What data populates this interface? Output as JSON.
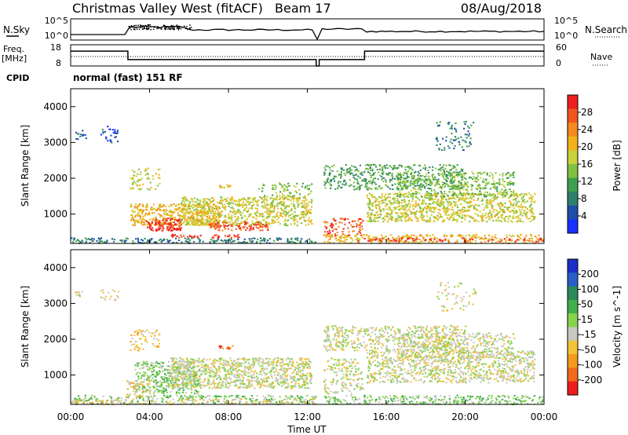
{
  "chart_data": {
    "type": "heatmap",
    "title": "Christmas Valley West (fitACF)",
    "beam_label": "Beam 17",
    "date": "08/Aug/2018",
    "xlabel": "Time UT",
    "x_ticks": [
      "00:00",
      "04:00",
      "08:00",
      "12:00",
      "16:00",
      "20:00",
      "00:00"
    ],
    "xlim_hours": [
      0,
      24
    ],
    "header": {
      "nsky_label": "N.Sky",
      "nsearch_label": "N.Search",
      "sky_ticks_left": [
        "10^5",
        "10^0"
      ],
      "sky_ticks_right": [
        "10^5",
        "10^0"
      ],
      "freq_label": "Freq.",
      "freq_unit": "[MHz]",
      "freq_ticks": [
        "18",
        "8"
      ],
      "nave_label": "Nave",
      "nave_ticks": [
        "60",
        "0"
      ],
      "cpid_label": "CPID",
      "cpid_value": "normal (fast) 151 RF",
      "freq_steps": [
        {
          "t0": 0.0,
          "t1": 2.9,
          "freq_mhz": 15
        },
        {
          "t0": 2.9,
          "t1": 12.45,
          "freq_mhz": 11
        },
        {
          "t0": 12.45,
          "t1": 12.6,
          "freq_mhz": 8
        },
        {
          "t0": 12.6,
          "t1": 14.9,
          "freq_mhz": 11
        },
        {
          "t0": 14.9,
          "t1": 24.0,
          "freq_mhz": 15
        }
      ]
    },
    "panels": [
      {
        "name": "power",
        "ylabel": "Slant Range [km]",
        "y_ticks": [
          1000,
          2000,
          3000,
          4000
        ],
        "ylim_km": [
          180,
          4500
        ],
        "colorbar_label": "Power [dB]",
        "colorbar_ticks": [
          4,
          8,
          12,
          16,
          20,
          24,
          28
        ],
        "colorbar_range": [
          0,
          32
        ],
        "colors": [
          "#1830ff",
          "#1e4fa8",
          "#2f7f6e",
          "#3f9f50",
          "#7fc040",
          "#c8d23a",
          "#f3b21b",
          "#f58a1f",
          "#f2561f",
          "#ef1f1f"
        ],
        "scatter_regions": [
          {
            "t0": 0.0,
            "t1": 12.4,
            "r0": 200,
            "r1": 350,
            "level": 2,
            "density": 0.5
          },
          {
            "t0": 0.2,
            "t1": 0.8,
            "r0": 3100,
            "r1": 3350,
            "level": 1,
            "density": 0.4
          },
          {
            "t0": 1.5,
            "t1": 2.4,
            "r0": 3000,
            "r1": 3500,
            "level": 1,
            "density": 0.3
          },
          {
            "t0": 3.0,
            "t1": 7.5,
            "r0": 700,
            "r1": 1300,
            "level": 6,
            "density": 0.7
          },
          {
            "t0": 3.8,
            "t1": 5.6,
            "r0": 550,
            "r1": 900,
            "level": 9,
            "density": 0.8
          },
          {
            "t0": 5.5,
            "t1": 12.2,
            "r0": 700,
            "r1": 1500,
            "level": 5,
            "density": 0.6
          },
          {
            "t0": 7.0,
            "t1": 10.0,
            "r0": 550,
            "r1": 800,
            "level": 8,
            "density": 0.6
          },
          {
            "t0": 5.0,
            "t1": 8.5,
            "r0": 350,
            "r1": 450,
            "level": 9,
            "density": 0.5
          },
          {
            "t0": 3.0,
            "t1": 4.5,
            "r0": 1700,
            "r1": 2300,
            "level": 5,
            "density": 0.3
          },
          {
            "t0": 7.5,
            "t1": 8.2,
            "r0": 1750,
            "r1": 1850,
            "level": 6,
            "density": 0.8
          },
          {
            "t0": 9.5,
            "t1": 12.2,
            "r0": 1500,
            "r1": 1900,
            "level": 4,
            "density": 0.3
          },
          {
            "t0": 12.8,
            "t1": 14.8,
            "r0": 400,
            "r1": 900,
            "level": 8,
            "density": 0.4
          },
          {
            "t0": 12.8,
            "t1": 24.0,
            "r0": 200,
            "r1": 450,
            "level": 6,
            "density": 0.5
          },
          {
            "t0": 14.5,
            "t1": 24.0,
            "r0": 250,
            "r1": 350,
            "level": 9,
            "density": 0.35
          },
          {
            "t0": 15.0,
            "t1": 23.5,
            "r0": 800,
            "r1": 1600,
            "level": 5,
            "density": 0.6
          },
          {
            "t0": 12.8,
            "t1": 20.0,
            "r0": 1700,
            "r1": 2400,
            "level": 3,
            "density": 0.4
          },
          {
            "t0": 16.5,
            "t1": 22.5,
            "r0": 1500,
            "r1": 2200,
            "level": 4,
            "density": 0.45
          },
          {
            "t0": 18.5,
            "t1": 20.5,
            "r0": 2800,
            "r1": 3600,
            "level": 2,
            "density": 0.2
          }
        ]
      },
      {
        "name": "velocity",
        "ylabel": "Slant Range [km]",
        "y_ticks": [
          1000,
          2000,
          3000,
          4000
        ],
        "ylim_km": [
          180,
          4500
        ],
        "colorbar_label": "Velocity [m s^-1]",
        "colorbar_ticks": [
          200,
          100,
          50,
          15,
          -15,
          -50,
          -100,
          -200
        ],
        "colorbar_range": [
          -250,
          250
        ],
        "colors": [
          "#1c2fc8",
          "#2a5ec8",
          "#2a8a5a",
          "#3fb04a",
          "#86d24a",
          "#c8c8c0",
          "#f2c23a",
          "#f59a1c",
          "#f26a1c",
          "#ee1c1c"
        ],
        "scatter_regions": [
          {
            "t0": 0.0,
            "t1": 12.4,
            "r0": 200,
            "r1": 450,
            "level": 4,
            "density": 0.45
          },
          {
            "t0": 0.0,
            "t1": 12.4,
            "r0": 200,
            "r1": 350,
            "level": 6,
            "density": 0.3
          },
          {
            "t0": 0.2,
            "t1": 0.8,
            "r0": 3150,
            "r1": 3350,
            "level": 5,
            "density": 0.4
          },
          {
            "t0": 1.5,
            "t1": 2.4,
            "r0": 3100,
            "r1": 3400,
            "level": 5,
            "density": 0.3
          },
          {
            "t0": 3.2,
            "t1": 6.5,
            "r0": 500,
            "r1": 1400,
            "level": 4,
            "density": 0.6
          },
          {
            "t0": 2.8,
            "t1": 4.0,
            "r0": 400,
            "r1": 900,
            "level": 6,
            "density": 0.4
          },
          {
            "t0": 5.0,
            "t1": 12.2,
            "r0": 650,
            "r1": 1500,
            "level": 5,
            "density": 0.7
          },
          {
            "t0": 7.5,
            "t1": 8.2,
            "r0": 1750,
            "r1": 1850,
            "level": 8,
            "density": 0.9
          },
          {
            "t0": 3.0,
            "t1": 4.5,
            "r0": 1700,
            "r1": 2300,
            "level": 6,
            "density": 0.3
          },
          {
            "t0": 12.8,
            "t1": 24.0,
            "r0": 200,
            "r1": 450,
            "level": 4,
            "density": 0.5
          },
          {
            "t0": 12.8,
            "t1": 14.8,
            "r0": 500,
            "r1": 1500,
            "level": 5,
            "density": 0.35
          },
          {
            "t0": 15.0,
            "t1": 23.5,
            "r0": 800,
            "r1": 1700,
            "level": 5,
            "density": 0.55
          },
          {
            "t0": 12.8,
            "t1": 20.0,
            "r0": 1700,
            "r1": 2400,
            "level": 5,
            "density": 0.45
          },
          {
            "t0": 16.5,
            "t1": 22.5,
            "r0": 1500,
            "r1": 2200,
            "level": 5,
            "density": 0.4
          },
          {
            "t0": 18.5,
            "t1": 20.5,
            "r0": 2800,
            "r1": 3600,
            "level": 5,
            "density": 0.15
          }
        ]
      }
    ]
  }
}
